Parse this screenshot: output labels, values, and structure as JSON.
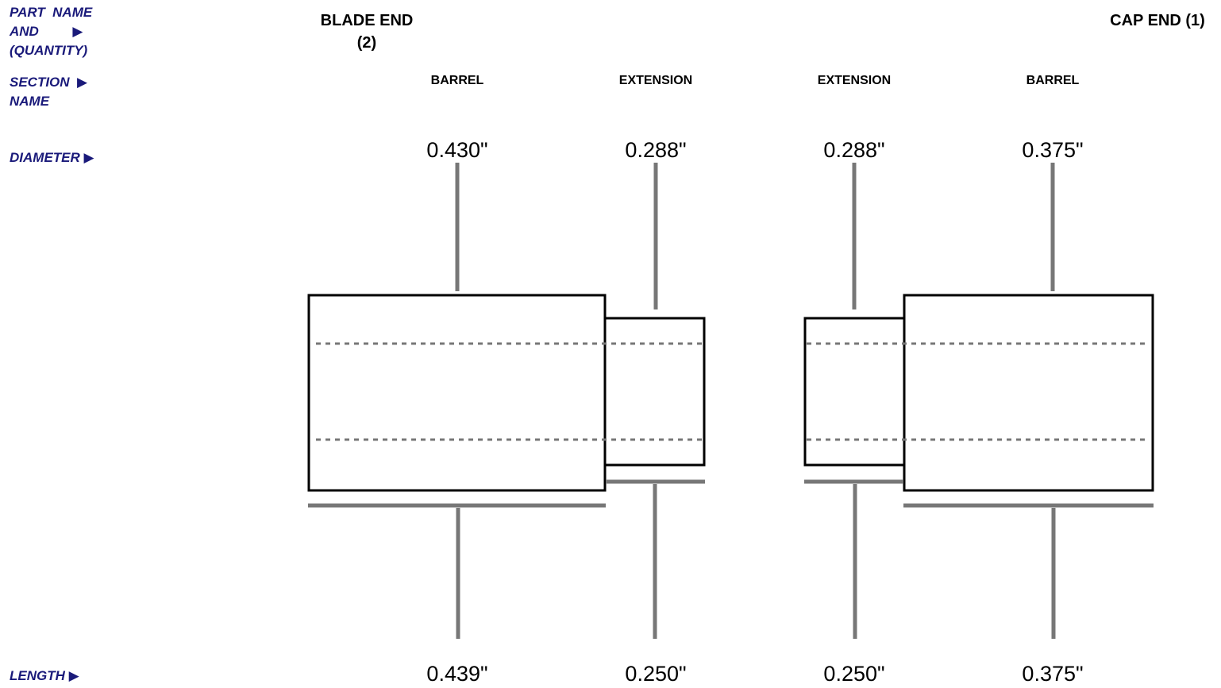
{
  "row_labels": {
    "part_name": "PART  NAME\nAND         ▶\n(QUANTITY)",
    "section_name": "SECTION  ▶\nNAME",
    "diameter": "DIAMETER ▶",
    "length": "LENGTH ▶"
  },
  "parts": {
    "blade": "BLADE END\n(2)",
    "cap": "CAP END (1)"
  },
  "sections": [
    {
      "name": "BARREL",
      "diameter": "0.430\"",
      "length": "0.439\""
    },
    {
      "name": "EXTENSION",
      "diameter": "0.288\"",
      "length": "0.250\""
    },
    {
      "name": "EXTENSION",
      "diameter": "0.288\"",
      "length": "0.250\""
    },
    {
      "name": "BARREL",
      "diameter": "0.375\"",
      "length": "0.375\""
    }
  ],
  "colors": {
    "label": "#1a1a7a",
    "leader": "#777777",
    "outline": "#000000"
  }
}
